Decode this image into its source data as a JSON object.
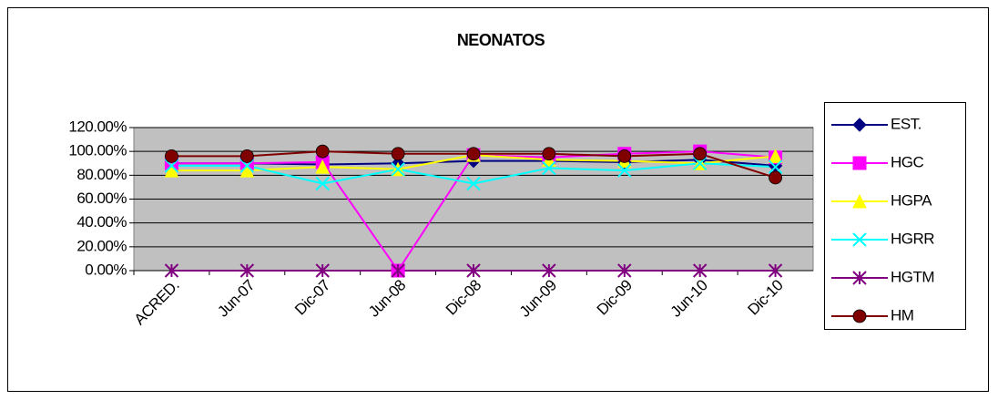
{
  "chart_data": {
    "type": "line",
    "title": "NEONATOS",
    "categories": [
      "ACRED.",
      "Jun-07",
      "Dic-07",
      "Jun-08",
      "Dic-08",
      "Jun-09",
      "Dic-09",
      "Jun-10",
      "Dic-10"
    ],
    "series": [
      {
        "name": "EST.",
        "color": "#000080",
        "marker": "diamond",
        "values": [
          90,
          90,
          89,
          90,
          92,
          92,
          91,
          93,
          88
        ]
      },
      {
        "name": "HGC",
        "color": "#ff00ff",
        "marker": "square",
        "values": [
          90,
          90,
          91,
          0,
          97,
          95,
          98,
          100,
          95
        ]
      },
      {
        "name": "HGPA",
        "color": "#ffff00",
        "marker": "triangle",
        "values": [
          84,
          84,
          87,
          85,
          97,
          93,
          92,
          90,
          96
        ]
      },
      {
        "name": "HGRR",
        "color": "#00ffff",
        "marker": "x",
        "values": [
          88,
          88,
          73,
          85,
          73,
          86,
          84,
          90,
          87
        ]
      },
      {
        "name": "HGTM",
        "color": "#800080",
        "marker": "star",
        "values": [
          0,
          0,
          0,
          0,
          0,
          0,
          0,
          0,
          0
        ]
      },
      {
        "name": "HM",
        "color": "#800000",
        "marker": "circle",
        "values": [
          96,
          96,
          100,
          98,
          98,
          98,
          96,
          98,
          78
        ]
      }
    ],
    "ylim": [
      0,
      120
    ],
    "yticks": [
      {
        "value": 0,
        "label": "0.00%"
      },
      {
        "value": 20,
        "label": "20.00%"
      },
      {
        "value": 40,
        "label": "40.00%"
      },
      {
        "value": 60,
        "label": "60.00%"
      },
      {
        "value": 80,
        "label": "80.00%"
      },
      {
        "value": 100,
        "label": "100.00%"
      },
      {
        "value": 120,
        "label": "120.00%"
      }
    ],
    "grid": true,
    "legend": "right",
    "plot_background": "#c0c0c0"
  }
}
